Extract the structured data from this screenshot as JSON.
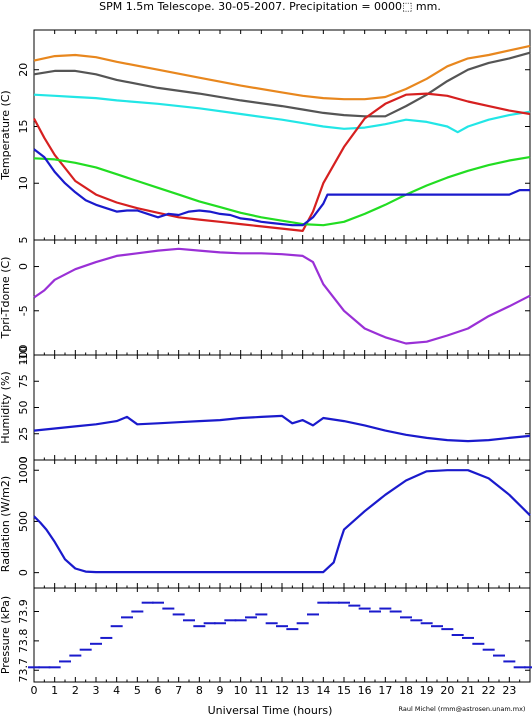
{
  "header": {
    "title": "SPM 1.5m Telescope. 30-05-2007. Precipitation = 0000⬚ mm.",
    "credit": "Raul Michel (rmm@astrosen.unam.mx)"
  },
  "colors": {
    "orange": "#e8871e",
    "gray": "#555555",
    "cyan": "#22e6e6",
    "red": "#d62020",
    "green": "#22dd22",
    "blue": "#1a1acc",
    "purple": "#9a30d6"
  },
  "chart_data": [
    {
      "type": "line",
      "ylabel": "Temperature (C)",
      "xlim": [
        0,
        24
      ],
      "ylim": [
        5,
        23.5
      ],
      "yticks": [
        5,
        10,
        15,
        20
      ],
      "series": [
        {
          "color_key": "orange",
          "x": [
            0,
            1,
            2,
            3,
            4,
            6,
            8,
            10,
            12,
            13,
            14,
            15,
            16,
            17,
            18,
            19,
            20,
            21,
            22,
            23,
            24
          ],
          "y": [
            20.8,
            21.2,
            21.3,
            21.1,
            20.7,
            20.0,
            19.3,
            18.6,
            18.0,
            17.7,
            17.5,
            17.4,
            17.4,
            17.6,
            18.3,
            19.2,
            20.3,
            21.0,
            21.3,
            21.7,
            22.1
          ]
        },
        {
          "color_key": "gray",
          "x": [
            0,
            1,
            2,
            3,
            4,
            6,
            8,
            10,
            12,
            13,
            14,
            15,
            16,
            17,
            18,
            19,
            20,
            21,
            22,
            23,
            24
          ],
          "y": [
            19.6,
            19.9,
            19.9,
            19.6,
            19.1,
            18.4,
            17.9,
            17.3,
            16.8,
            16.5,
            16.2,
            16.0,
            15.9,
            15.9,
            16.8,
            17.8,
            19.0,
            20.0,
            20.6,
            21.0,
            21.5
          ]
        },
        {
          "color_key": "cyan",
          "x": [
            0,
            1,
            2,
            3,
            4,
            6,
            8,
            10,
            12,
            13,
            14,
            15,
            16,
            17,
            18,
            19,
            20,
            20.5,
            21,
            22,
            23,
            24
          ],
          "y": [
            17.8,
            17.7,
            17.6,
            17.5,
            17.3,
            17.0,
            16.6,
            16.1,
            15.6,
            15.3,
            15.0,
            14.8,
            14.9,
            15.2,
            15.6,
            15.4,
            15.0,
            14.5,
            15.0,
            15.6,
            16.0,
            16.3
          ]
        },
        {
          "color_key": "red",
          "x": [
            0,
            0.5,
            1,
            2,
            3,
            4,
            5,
            6,
            7,
            8,
            9,
            10,
            11,
            12,
            13,
            13.5,
            14,
            15,
            16,
            17,
            18,
            19,
            20,
            21,
            22,
            23,
            24
          ],
          "y": [
            15.7,
            14.0,
            12.5,
            10.2,
            9.0,
            8.3,
            7.8,
            7.4,
            7.0,
            6.8,
            6.6,
            6.4,
            6.2,
            6.0,
            5.8,
            7.5,
            10.0,
            13.2,
            15.7,
            17.0,
            17.8,
            17.9,
            17.7,
            17.2,
            16.8,
            16.4,
            16.1
          ]
        },
        {
          "color_key": "green",
          "x": [
            0,
            1,
            2,
            3,
            4,
            5,
            6,
            7,
            8,
            9,
            10,
            11,
            12,
            13,
            14,
            15,
            16,
            17,
            18,
            19,
            20,
            21,
            22,
            23,
            24
          ],
          "y": [
            12.2,
            12.1,
            11.8,
            11.4,
            10.8,
            10.2,
            9.6,
            9.0,
            8.4,
            7.9,
            7.4,
            7.0,
            6.7,
            6.4,
            6.3,
            6.6,
            7.3,
            8.1,
            9.0,
            9.8,
            10.5,
            11.1,
            11.6,
            12.0,
            12.3
          ]
        },
        {
          "color_key": "blue",
          "x": [
            0,
            0.5,
            1,
            1.5,
            2,
            2.5,
            3,
            3.5,
            4,
            4.5,
            5,
            5.5,
            6,
            6.5,
            7,
            7.5,
            8,
            8.5,
            9,
            9.5,
            10,
            10.5,
            11,
            11.5,
            12,
            12.5,
            13,
            13.5,
            14,
            14.2,
            15,
            16,
            17,
            18,
            19,
            20,
            21,
            22,
            23,
            23.5,
            24
          ],
          "y": [
            13.0,
            12.3,
            11.0,
            10.0,
            9.2,
            8.5,
            8.1,
            7.8,
            7.5,
            7.6,
            7.6,
            7.3,
            7.0,
            7.3,
            7.2,
            7.5,
            7.6,
            7.5,
            7.3,
            7.2,
            6.9,
            6.8,
            6.6,
            6.5,
            6.4,
            6.3,
            6.3,
            7.0,
            8.2,
            9.0,
            9.0,
            9.0,
            9.0,
            9.0,
            9.0,
            9.0,
            9.0,
            9.0,
            9.0,
            9.4,
            9.4
          ]
        }
      ]
    },
    {
      "type": "line",
      "ylabel": "Tpri-Tdome (C)",
      "xlim": [
        0,
        24
      ],
      "ylim": [
        -10,
        3
      ],
      "yticks": [
        -10,
        -5,
        0
      ],
      "series": [
        {
          "color_key": "purple",
          "x": [
            0,
            0.5,
            1,
            2,
            3,
            4,
            5,
            6,
            7,
            8,
            9,
            10,
            11,
            12,
            13,
            13.5,
            14,
            15,
            16,
            17,
            18,
            19,
            20,
            21,
            22,
            23,
            24
          ],
          "y": [
            -3.5,
            -2.7,
            -1.5,
            -0.3,
            0.5,
            1.2,
            1.5,
            1.8,
            2.0,
            1.8,
            1.6,
            1.5,
            1.5,
            1.4,
            1.2,
            0.5,
            -2.0,
            -5.0,
            -7.0,
            -8.0,
            -8.7,
            -8.5,
            -7.8,
            -7.0,
            -5.6,
            -4.5,
            -3.3
          ]
        }
      ]
    },
    {
      "type": "line",
      "ylabel": "Humidity (%)",
      "xlim": [
        0,
        24
      ],
      "ylim": [
        0,
        100
      ],
      "yticks": [
        0,
        25,
        50,
        75,
        100
      ],
      "series": [
        {
          "color_key": "blue",
          "x": [
            0,
            1,
            2,
            3,
            4,
            4.5,
            5,
            6,
            7,
            8,
            9,
            10,
            11,
            12,
            12.5,
            13,
            13.5,
            14,
            15,
            16,
            17,
            18,
            19,
            20,
            21,
            22,
            23,
            24
          ],
          "y": [
            28,
            30,
            32,
            34,
            37,
            41,
            34,
            35,
            36,
            37,
            38,
            40,
            41,
            42,
            35,
            38,
            33,
            40,
            37,
            33,
            28,
            24,
            21,
            19,
            18,
            19,
            21,
            23
          ]
        }
      ]
    },
    {
      "type": "line",
      "ylabel": "Radiation (W/m2)",
      "xlim": [
        0,
        24
      ],
      "ylim": [
        -150,
        1100
      ],
      "yticks": [
        0,
        500,
        1000
      ],
      "series": [
        {
          "color_key": "blue",
          "x": [
            0,
            0.3,
            0.6,
            1,
            1.5,
            2,
            2.5,
            3,
            4,
            6,
            8,
            10,
            12,
            13,
            14,
            14.5,
            14.8,
            15,
            16,
            17,
            18,
            19,
            20,
            21,
            22,
            23,
            24
          ],
          "y": [
            550,
            490,
            420,
            300,
            130,
            40,
            10,
            5,
            5,
            5,
            5,
            5,
            5,
            5,
            5,
            100,
            300,
            420,
            600,
            760,
            900,
            990,
            1000,
            1000,
            920,
            760,
            560
          ]
        }
      ]
    },
    {
      "type": "scatter",
      "ylabel": "Pressure (kPa)",
      "xlabel": "Universal Time (hours)",
      "xlim": [
        0,
        24
      ],
      "ylim": [
        73.66,
        73.98
      ],
      "yticks": [
        73.7,
        73.8,
        73.9
      ],
      "xticks": [
        0,
        1,
        2,
        3,
        4,
        5,
        6,
        7,
        8,
        9,
        10,
        11,
        12,
        13,
        14,
        15,
        16,
        17,
        18,
        19,
        20,
        21,
        22,
        23
      ],
      "series": [
        {
          "color_key": "blue",
          "x": [
            0,
            0.5,
            1,
            1.5,
            2,
            2.5,
            3,
            3.5,
            4,
            4.5,
            5,
            5.5,
            6,
            6.5,
            7,
            7.5,
            8,
            8.5,
            9,
            9.5,
            10,
            10.5,
            11,
            11.5,
            12,
            12.5,
            13,
            13.5,
            14,
            14.5,
            15,
            15.5,
            16,
            16.5,
            17,
            17.5,
            18,
            18.5,
            19,
            19.5,
            20,
            20.5,
            21,
            21.5,
            22,
            22.5,
            23,
            23.5,
            24
          ],
          "y": [
            73.71,
            73.71,
            73.71,
            73.73,
            73.75,
            73.77,
            73.79,
            73.81,
            73.85,
            73.88,
            73.9,
            73.93,
            73.93,
            73.91,
            73.89,
            73.87,
            73.85,
            73.86,
            73.86,
            73.87,
            73.87,
            73.88,
            73.89,
            73.86,
            73.85,
            73.84,
            73.86,
            73.89,
            73.93,
            73.93,
            73.93,
            73.92,
            73.91,
            73.9,
            73.91,
            73.9,
            73.88,
            73.87,
            73.86,
            73.85,
            73.84,
            73.82,
            73.81,
            73.79,
            73.77,
            73.75,
            73.73,
            73.71,
            73.71
          ]
        }
      ]
    }
  ],
  "x_axis": {
    "label": "Universal Time (hours)"
  }
}
